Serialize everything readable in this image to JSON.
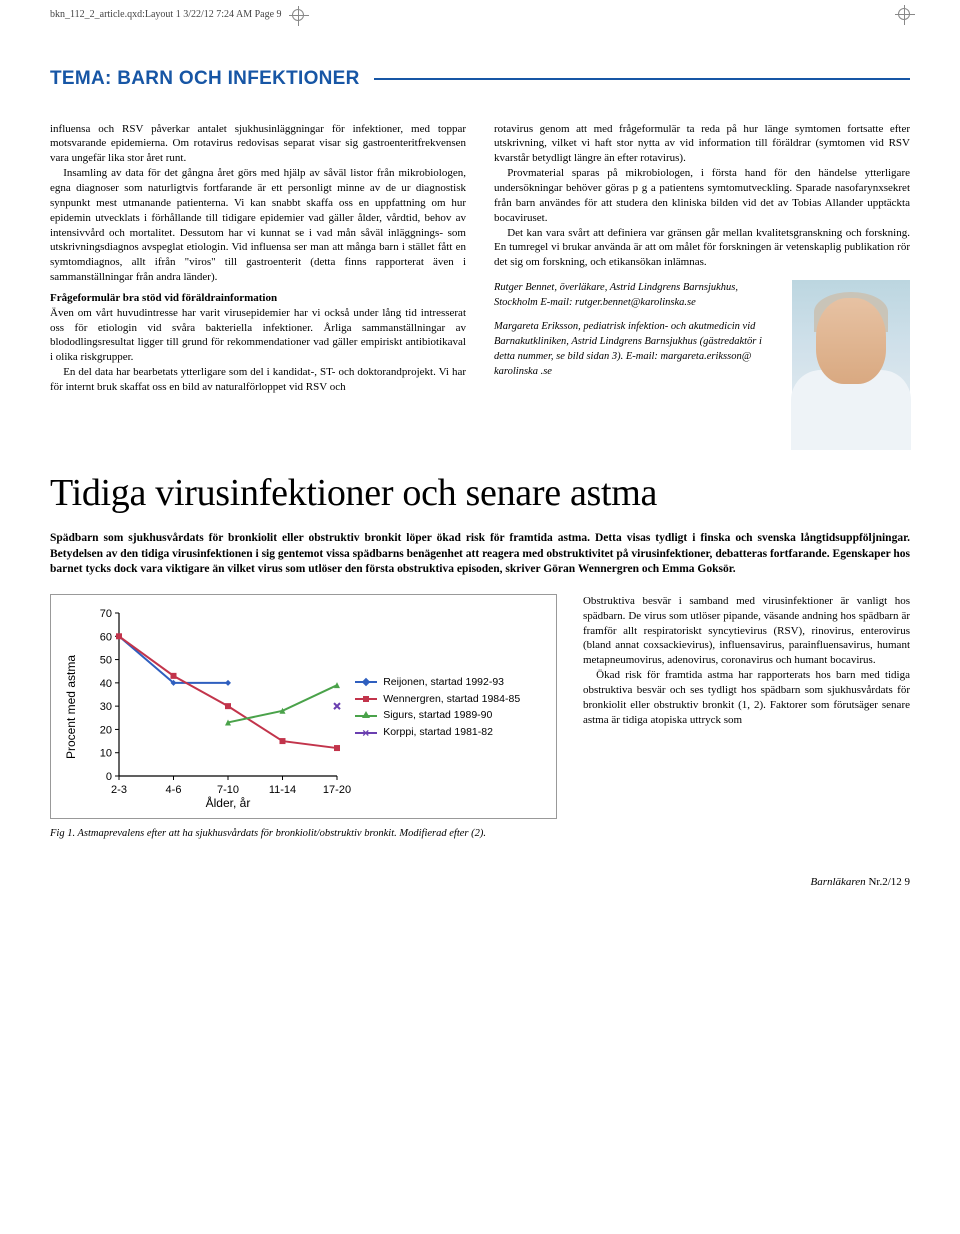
{
  "meta": {
    "slug": "bkn_112_2_article.qxd:Layout 1  3/22/12  7:24 AM  Page 9"
  },
  "tema": {
    "title": "TEMA: BARN OCH INFEKTIONER",
    "accent_color": "#1756a5"
  },
  "article1": {
    "left": {
      "p1": "influensa och RSV påverkar antalet sjukhusinläggningar för infektioner, med toppar motsvarande epidemierna. Om rotavirus redovisas separat visar sig gastroenteritfrekvensen vara ungefär lika stor året runt.",
      "p2": "Insamling av data för det gångna året görs med hjälp av såväl listor från mikrobiologen, egna diagnoser som naturligtvis fortfarande är ett personligt minne av de ur diagnostisk synpunkt mest utmanande patienterna. Vi kan snabbt skaffa oss en uppfattning om hur epidemin utvecklats i förhållande till tidigare epidemier vad gäller ålder, vårdtid, behov av intensivvård och mortalitet. Dessutom har vi kunnat se i vad mån såväl inläggnings- som utskrivningsdiagnos avspeglat etiologin. Vid influensa ser man att många barn i stället fått en symtomdiagnos, allt ifrån \"viros\" till gastroenterit (detta finns rapporterat även i sammanställningar från andra länder).",
      "subhead": "Frågeformulär bra stöd vid föräldrainformation",
      "p3": "Även om vårt huvudintresse har varit virusepidemier har vi också under lång tid intresserat oss för etiologin vid svåra bakteriella infektioner. Årliga sammanställningar av blododlingsresultat ligger till grund för rekommendationer vad gäller empiriskt antibiotikaval i olika riskgrupper.",
      "p4": "En del data har bearbetats ytterligare som del i kandidat-, ST- och doktorandprojekt. Vi har för internt bruk skaffat oss en bild av naturalförloppet vid RSV och"
    },
    "right": {
      "p1": "rotavirus genom att med frågeformulär ta reda på hur länge symtomen fortsatte efter utskrivning, vilket vi haft stor nytta av vid information till föräldrar (symtomen vid RSV kvarstår betydligt längre än efter rotavirus).",
      "p2": "Provmaterial sparas på mikrobiologen, i första hand för den händelse ytterligare undersökningar behöver göras p g a patientens symtomutveckling. Sparade nasofarynxsekret från barn användes för att studera den kliniska bilden vid det av Tobias Allander upptäckta bocaviruset.",
      "p3": "Det kan vara svårt att definiera var gränsen går mellan kvalitetsgranskning och forskning. En tumregel vi brukar använda är att om målet för forskningen är vetenskaplig publikation rör det sig om forskning, och etikansökan inlämnas.",
      "byline1": "Rutger Bennet, överläkare, Astrid Lindgrens Barnsjukhus, Stockholm E-mail: rutger.bennet@karolinska.se",
      "byline2": "Margareta Eriksson, pediatrisk infektion- och akutmedicin vid Barnakutkliniken, Astrid Lindgrens Barnsjukhus (gästredaktör i detta nummer, se bild sidan 3). E-mail: margareta.eriksson@ karolinska .se"
    }
  },
  "article2": {
    "title": "Tidiga virusinfektioner och senare astma",
    "lead": "Spädbarn som sjukhusvårdats för bronkiolit eller obstruktiv bronkit löper ökad risk för framtida astma. Detta visas tydligt i finska och svenska långtidsuppföljningar. Betydelsen av den tidiga virusinfektionen i sig gentemot vissa spädbarns benägenhet att reagera med obstruktivitet på virusinfektioner, debatteras fortfarande. Egenskaper hos barnet tycks dock vara viktigare än vilket virus som utlöser den första obstruktiva episoden, skriver Göran Wennergren och Emma Goksör.",
    "chart": {
      "type": "line",
      "background_color": "#ffffff",
      "border_color": "#999999",
      "ylabel": "Procent med astma",
      "xlabel": "Ålder, år",
      "x_categories": [
        "2-3",
        "4-6",
        "7-10",
        "11-14",
        "17-20"
      ],
      "ylim": [
        0,
        70
      ],
      "ytick_step": 10,
      "axis_font_family": "Arial",
      "axis_fontsize": 11,
      "line_width": 2,
      "marker_size": 6,
      "series": [
        {
          "name": "Reijonen, startad 1992-93",
          "color": "#2f5fbf",
          "marker": "diamond",
          "values": [
            60,
            40,
            40,
            null,
            null
          ]
        },
        {
          "name": "Wennergren, startad 1984-85",
          "color": "#c2344b",
          "marker": "square",
          "values": [
            60,
            43,
            30,
            15,
            12
          ]
        },
        {
          "name": "Sigurs, startad 1989-90",
          "color": "#4aa24a",
          "marker": "triangle",
          "values": [
            null,
            null,
            23,
            28,
            39
          ]
        },
        {
          "name": "Korppi, startad 1981-82",
          "color": "#6a3fb0",
          "marker": "x",
          "values": [
            null,
            null,
            null,
            null,
            30
          ]
        }
      ]
    },
    "fig_caption": "Fig 1. Astmaprevalens efter att ha sjukhusvårdats för bronkiolit/obstruktiv bronkit. Modifierad efter (2).",
    "right": {
      "p1": "Obstruktiva besvär i samband med virusinfektioner är vanligt hos spädbarn. De virus som utlöser pipande, väsande andning hos spädbarn är framför allt respiratoriskt syncytievirus (RSV), rinovirus, enterovirus (bland annat coxsackievirus), influensavirus, parainfluensavirus, humant metapneumovirus, adenovirus, coronavirus och humant bocavirus.",
      "p2": "Ökad risk för framtida astma har rapporterats hos barn med tidiga obstruktiva besvär och ses tydligt hos spädbarn som sjukhusvårdats för bronkiolit eller obstruktiv bronkit (1, 2). Faktorer som förutsäger senare astma är tidiga atopiska uttryck som"
    }
  },
  "footer": {
    "mag": "Barnläkaren",
    "issue": " Nr.2/12 ",
    "page": "9"
  }
}
